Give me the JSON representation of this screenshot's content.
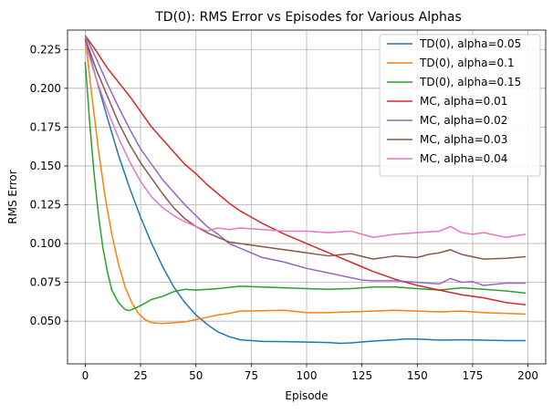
{
  "chart_data": {
    "type": "line",
    "title": "TD(0): RMS Error vs Episodes for Various Alphas",
    "xlabel": "Episode",
    "ylabel": "RMS Error",
    "xlim": [
      -8,
      208
    ],
    "ylim": [
      0.0225,
      0.2375
    ],
    "xticks": [
      0,
      25,
      50,
      75,
      100,
      125,
      150,
      175,
      200
    ],
    "yticks": [
      0.05,
      0.075,
      0.1,
      0.125,
      0.15,
      0.175,
      0.2,
      0.225
    ],
    "ytick_labels": [
      "0.050",
      "0.075",
      "0.100",
      "0.125",
      "0.150",
      "0.175",
      "0.200",
      "0.225"
    ],
    "grid": true,
    "legend_position": "top-right",
    "series": [
      {
        "name": "TD(0), alpha=0.05",
        "color": "#1f77b4",
        "points": [
          [
            0,
            0.232
          ],
          [
            5,
            0.206
          ],
          [
            10,
            0.181
          ],
          [
            15,
            0.157
          ],
          [
            20,
            0.136
          ],
          [
            25,
            0.117
          ],
          [
            30,
            0.1
          ],
          [
            35,
            0.085
          ],
          [
            40,
            0.072
          ],
          [
            45,
            0.062
          ],
          [
            50,
            0.054
          ],
          [
            55,
            0.048
          ],
          [
            60,
            0.043
          ],
          [
            65,
            0.04
          ],
          [
            70,
            0.038
          ],
          [
            75,
            0.0375
          ],
          [
            80,
            0.037
          ],
          [
            90,
            0.0368
          ],
          [
            100,
            0.0365
          ],
          [
            110,
            0.0362
          ],
          [
            115,
            0.0357
          ],
          [
            120,
            0.036
          ],
          [
            130,
            0.0372
          ],
          [
            140,
            0.038
          ],
          [
            145,
            0.0385
          ],
          [
            150,
            0.0385
          ],
          [
            160,
            0.0378
          ],
          [
            170,
            0.038
          ],
          [
            180,
            0.0378
          ],
          [
            190,
            0.0375
          ],
          [
            199,
            0.0375
          ]
        ]
      },
      {
        "name": "TD(0), alpha=0.1",
        "color": "#ff7f0e",
        "points": [
          [
            0,
            0.232
          ],
          [
            3,
            0.195
          ],
          [
            6,
            0.16
          ],
          [
            9,
            0.13
          ],
          [
            12,
            0.106
          ],
          [
            15,
            0.087
          ],
          [
            18,
            0.072
          ],
          [
            21,
            0.062
          ],
          [
            24,
            0.055
          ],
          [
            27,
            0.051
          ],
          [
            30,
            0.049
          ],
          [
            35,
            0.0485
          ],
          [
            40,
            0.049
          ],
          [
            45,
            0.0495
          ],
          [
            50,
            0.051
          ],
          [
            55,
            0.0525
          ],
          [
            60,
            0.054
          ],
          [
            65,
            0.055
          ],
          [
            70,
            0.0565
          ],
          [
            80,
            0.0567
          ],
          [
            90,
            0.057
          ],
          [
            100,
            0.0555
          ],
          [
            110,
            0.0555
          ],
          [
            120,
            0.056
          ],
          [
            130,
            0.0565
          ],
          [
            140,
            0.057
          ],
          [
            150,
            0.0565
          ],
          [
            160,
            0.056
          ],
          [
            170,
            0.0565
          ],
          [
            180,
            0.0555
          ],
          [
            190,
            0.055
          ],
          [
            199,
            0.0545
          ]
        ]
      },
      {
        "name": "TD(0), alpha=0.15",
        "color": "#2ca02c",
        "points": [
          [
            0,
            0.217
          ],
          [
            2,
            0.178
          ],
          [
            4,
            0.145
          ],
          [
            6,
            0.118
          ],
          [
            8,
            0.097
          ],
          [
            10,
            0.082
          ],
          [
            12,
            0.07
          ],
          [
            15,
            0.062
          ],
          [
            18,
            0.0575
          ],
          [
            20,
            0.0568
          ],
          [
            25,
            0.06
          ],
          [
            30,
            0.064
          ],
          [
            35,
            0.066
          ],
          [
            40,
            0.069
          ],
          [
            45,
            0.0705
          ],
          [
            50,
            0.07
          ],
          [
            60,
            0.071
          ],
          [
            70,
            0.0725
          ],
          [
            80,
            0.072
          ],
          [
            90,
            0.0715
          ],
          [
            100,
            0.071
          ],
          [
            110,
            0.0705
          ],
          [
            120,
            0.071
          ],
          [
            130,
            0.072
          ],
          [
            140,
            0.072
          ],
          [
            150,
            0.071
          ],
          [
            160,
            0.07
          ],
          [
            170,
            0.0715
          ],
          [
            180,
            0.0705
          ],
          [
            190,
            0.0695
          ],
          [
            199,
            0.068
          ]
        ]
      },
      {
        "name": "MC, alpha=0.01",
        "color": "#d62728",
        "points": [
          [
            0,
            0.234
          ],
          [
            5,
            0.224
          ],
          [
            10,
            0.213
          ],
          [
            15,
            0.204
          ],
          [
            20,
            0.195
          ],
          [
            25,
            0.185
          ],
          [
            30,
            0.175
          ],
          [
            35,
            0.167
          ],
          [
            40,
            0.159
          ],
          [
            45,
            0.151
          ],
          [
            50,
            0.145
          ],
          [
            55,
            0.138
          ],
          [
            60,
            0.132
          ],
          [
            65,
            0.126
          ],
          [
            70,
            0.121
          ],
          [
            75,
            0.117
          ],
          [
            80,
            0.113
          ],
          [
            90,
            0.106
          ],
          [
            100,
            0.1
          ],
          [
            110,
            0.094
          ],
          [
            120,
            0.088
          ],
          [
            130,
            0.082
          ],
          [
            140,
            0.077
          ],
          [
            150,
            0.073
          ],
          [
            160,
            0.07
          ],
          [
            170,
            0.067
          ],
          [
            180,
            0.065
          ],
          [
            190,
            0.062
          ],
          [
            199,
            0.0605
          ]
        ]
      },
      {
        "name": "MC, alpha=0.02",
        "color": "#9467bd",
        "points": [
          [
            0,
            0.234
          ],
          [
            5,
            0.219
          ],
          [
            10,
            0.203
          ],
          [
            15,
            0.188
          ],
          [
            20,
            0.174
          ],
          [
            25,
            0.161
          ],
          [
            30,
            0.151
          ],
          [
            35,
            0.141
          ],
          [
            40,
            0.133
          ],
          [
            45,
            0.125
          ],
          [
            50,
            0.118
          ],
          [
            55,
            0.111
          ],
          [
            60,
            0.106
          ],
          [
            65,
            0.1
          ],
          [
            70,
            0.097
          ],
          [
            75,
            0.094
          ],
          [
            80,
            0.091
          ],
          [
            90,
            0.088
          ],
          [
            100,
            0.084
          ],
          [
            110,
            0.081
          ],
          [
            120,
            0.078
          ],
          [
            125,
            0.0765
          ],
          [
            130,
            0.076
          ],
          [
            140,
            0.076
          ],
          [
            150,
            0.075
          ],
          [
            160,
            0.074
          ],
          [
            165,
            0.0775
          ],
          [
            170,
            0.075
          ],
          [
            175,
            0.0755
          ],
          [
            180,
            0.073
          ],
          [
            190,
            0.0745
          ],
          [
            199,
            0.0745
          ]
        ]
      },
      {
        "name": "MC, alpha=0.03",
        "color": "#8c564b",
        "points": [
          [
            0,
            0.232
          ],
          [
            5,
            0.212
          ],
          [
            10,
            0.195
          ],
          [
            15,
            0.178
          ],
          [
            20,
            0.164
          ],
          [
            25,
            0.152
          ],
          [
            30,
            0.142
          ],
          [
            35,
            0.132
          ],
          [
            40,
            0.123
          ],
          [
            45,
            0.116
          ],
          [
            50,
            0.111
          ],
          [
            55,
            0.107
          ],
          [
            60,
            0.104
          ],
          [
            65,
            0.101
          ],
          [
            70,
            0.1
          ],
          [
            75,
            0.099
          ],
          [
            80,
            0.098
          ],
          [
            90,
            0.096
          ],
          [
            100,
            0.094
          ],
          [
            110,
            0.092
          ],
          [
            120,
            0.0935
          ],
          [
            130,
            0.09
          ],
          [
            140,
            0.092
          ],
          [
            150,
            0.091
          ],
          [
            155,
            0.093
          ],
          [
            160,
            0.094
          ],
          [
            165,
            0.096
          ],
          [
            170,
            0.093
          ],
          [
            180,
            0.09
          ],
          [
            190,
            0.0905
          ],
          [
            199,
            0.0915
          ]
        ]
      },
      {
        "name": "MC, alpha=0.04",
        "color": "#e377c2",
        "points": [
          [
            0,
            0.229
          ],
          [
            5,
            0.206
          ],
          [
            10,
            0.186
          ],
          [
            15,
            0.168
          ],
          [
            20,
            0.153
          ],
          [
            25,
            0.14
          ],
          [
            30,
            0.13
          ],
          [
            35,
            0.123
          ],
          [
            40,
            0.118
          ],
          [
            45,
            0.114
          ],
          [
            50,
            0.111
          ],
          [
            55,
            0.108
          ],
          [
            60,
            0.11
          ],
          [
            65,
            0.109
          ],
          [
            70,
            0.11
          ],
          [
            80,
            0.109
          ],
          [
            90,
            0.108
          ],
          [
            100,
            0.108
          ],
          [
            110,
            0.107
          ],
          [
            120,
            0.108
          ],
          [
            130,
            0.104
          ],
          [
            140,
            0.106
          ],
          [
            150,
            0.107
          ],
          [
            160,
            0.108
          ],
          [
            165,
            0.111
          ],
          [
            170,
            0.107
          ],
          [
            175,
            0.106
          ],
          [
            180,
            0.107
          ],
          [
            190,
            0.104
          ],
          [
            199,
            0.106
          ]
        ]
      }
    ]
  }
}
